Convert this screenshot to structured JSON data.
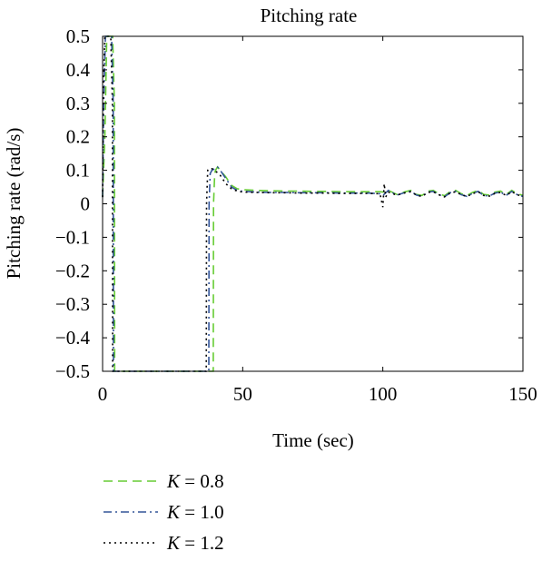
{
  "chart_data": {
    "type": "line",
    "title": "Pitching rate",
    "xlabel": "Time (sec)",
    "ylabel": "Pitching rate (rad/s)",
    "xlim": [
      0,
      150
    ],
    "ylim": [
      -0.5,
      0.5
    ],
    "xticks": [
      0,
      50,
      100,
      150
    ],
    "xtick_labels": [
      "0",
      "50",
      "100",
      "150"
    ],
    "yticks": [
      0.5,
      0.4,
      0.3,
      0.2,
      0.1,
      0,
      -0.1,
      -0.2,
      -0.3,
      -0.4,
      -0.5
    ],
    "ytick_labels": [
      "0.5",
      "0.4",
      "0.3",
      "0.2",
      "0.1",
      "0",
      "−0.1",
      "−0.2",
      "−0.3",
      "−0.4",
      "−0.5"
    ],
    "grid": false,
    "legend_position": "below",
    "series": [
      {
        "name": "K = 0.8",
        "label_var": "K",
        "label_value": "= 0.8",
        "color": "#66cc33",
        "dash": "10,6",
        "x": [
          0,
          0.8,
          1.5,
          2.2,
          3,
          3.6,
          4.2,
          4.3,
          10,
          20,
          30,
          39.5,
          39.6,
          40,
          40.3,
          41,
          42,
          44,
          46,
          48,
          50,
          55,
          60,
          65,
          70,
          75,
          80,
          85,
          90,
          95,
          99,
          100,
          102,
          105,
          108,
          110,
          112,
          114,
          116,
          118,
          120,
          122,
          124,
          126,
          128,
          130,
          132,
          134,
          136,
          138,
          140,
          142,
          144,
          146,
          148,
          150
        ],
        "y": [
          0.02,
          0.2,
          0.5,
          0.5,
          0.5,
          0.5,
          0.3,
          -0.5,
          -0.5,
          -0.5,
          -0.5,
          -0.5,
          0.0,
          0.09,
          0.1,
          0.11,
          0.1,
          0.08,
          0.055,
          0.045,
          0.042,
          0.04,
          0.039,
          0.038,
          0.038,
          0.037,
          0.037,
          0.036,
          0.036,
          0.036,
          0.036,
          0.035,
          0.04,
          0.028,
          0.036,
          0.04,
          0.028,
          0.025,
          0.038,
          0.04,
          0.03,
          0.024,
          0.036,
          0.04,
          0.03,
          0.025,
          0.034,
          0.04,
          0.028,
          0.026,
          0.035,
          0.038,
          0.028,
          0.04,
          0.03,
          0.025
        ]
      },
      {
        "name": "K = 1.0",
        "label_var": "K",
        "label_value": "= 1.0",
        "color": "#335599",
        "dash": "9,4,2,4",
        "x": [
          0,
          0.4,
          1,
          1.5,
          2.5,
          3.2,
          3.8,
          3.9,
          10,
          20,
          30,
          37.9,
          38,
          38.4,
          39,
          40,
          41,
          42,
          44,
          46,
          48,
          50,
          55,
          60,
          65,
          70,
          75,
          80,
          85,
          90,
          95,
          99,
          100,
          102,
          105,
          108,
          110,
          112,
          114,
          116,
          118,
          120,
          122,
          124,
          126,
          128,
          130,
          132,
          134,
          136,
          138,
          140,
          142,
          144,
          146,
          148,
          150
        ],
        "y": [
          0.02,
          0.3,
          0.5,
          0.5,
          0.5,
          0.5,
          0.3,
          -0.5,
          -0.5,
          -0.5,
          -0.5,
          -0.5,
          0.0,
          0.09,
          0.1,
          0.105,
          0.11,
          0.1,
          0.075,
          0.05,
          0.04,
          0.037,
          0.035,
          0.034,
          0.034,
          0.033,
          0.033,
          0.033,
          0.032,
          0.032,
          0.032,
          0.03,
          0.025,
          0.04,
          0.026,
          0.034,
          0.038,
          0.026,
          0.022,
          0.035,
          0.037,
          0.027,
          0.021,
          0.033,
          0.037,
          0.027,
          0.022,
          0.031,
          0.037,
          0.025,
          0.023,
          0.032,
          0.035,
          0.025,
          0.037,
          0.027,
          0.022
        ]
      },
      {
        "name": "K = 1.2",
        "label_var": "K",
        "label_value": "= 1.2",
        "color": "#000000",
        "dash": "2,4",
        "x": [
          0,
          0.3,
          0.8,
          1.3,
          2.2,
          2.9,
          3.5,
          3.6,
          10,
          20,
          30,
          37,
          37.1,
          37.5,
          38,
          39,
          40,
          42,
          44,
          46,
          48,
          50,
          55,
          60,
          65,
          70,
          75,
          80,
          85,
          90,
          95,
          99,
          100,
          100.5,
          101,
          102,
          105,
          108,
          110,
          112,
          114,
          116,
          118,
          120,
          122,
          124,
          126,
          128,
          130,
          132,
          134,
          136,
          138,
          140,
          142,
          144,
          146,
          148,
          150
        ],
        "y": [
          0.02,
          0.35,
          0.5,
          0.5,
          0.5,
          0.5,
          0.3,
          -0.5,
          -0.5,
          -0.5,
          -0.5,
          -0.5,
          0.0,
          0.1,
          0.105,
          0.105,
          0.1,
          0.085,
          0.06,
          0.045,
          0.038,
          0.035,
          0.034,
          0.033,
          0.033,
          0.032,
          0.032,
          0.032,
          0.031,
          0.031,
          0.031,
          0.03,
          -0.01,
          0.06,
          0.02,
          0.035,
          0.026,
          0.033,
          0.036,
          0.026,
          0.022,
          0.034,
          0.036,
          0.027,
          0.021,
          0.032,
          0.036,
          0.027,
          0.022,
          0.03,
          0.036,
          0.025,
          0.023,
          0.031,
          0.034,
          0.025,
          0.036,
          0.027,
          0.022
        ]
      }
    ]
  }
}
